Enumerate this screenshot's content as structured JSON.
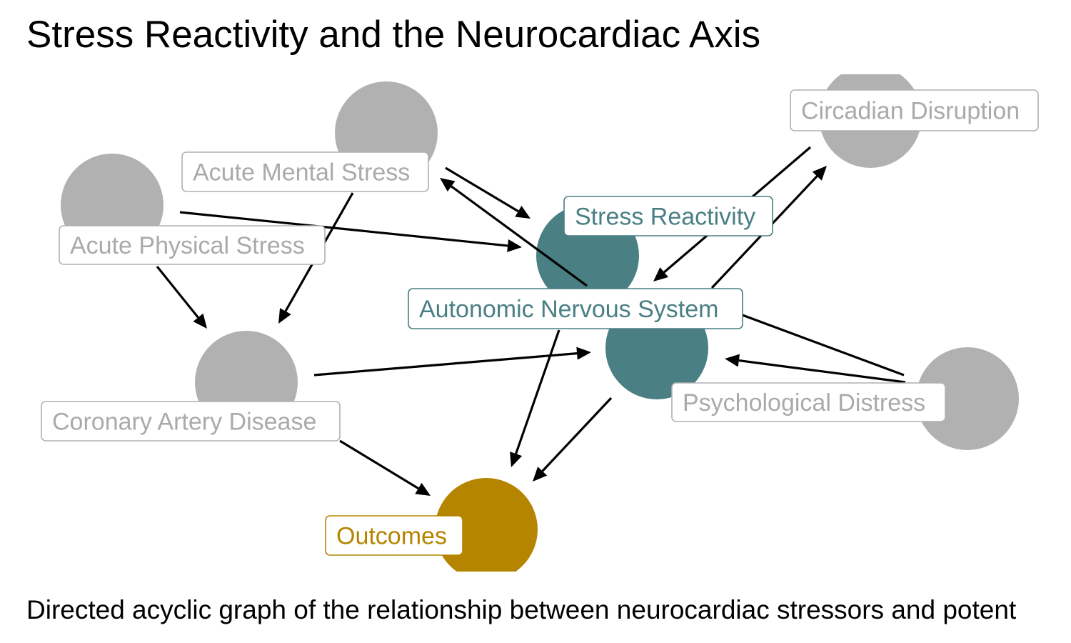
{
  "title": "Stress Reactivity and the Neurocardiac Axis",
  "caption": "Directed acyclic graph of the relationship between neurocardiac stressors and potent",
  "colors": {
    "neutral_fill": "#b0b1b0",
    "neutral_text": "#a9aaa9",
    "neutral_border": "#b0b1b0",
    "focus_fill": "#4a7f84",
    "focus_text": "#4a7f84",
    "outcome_fill": "#b58500",
    "outcome_text": "#b58500",
    "arrow": "#000000"
  },
  "nodes": [
    {
      "id": "ams",
      "label": "Acute Mental Stress",
      "role": "neutral"
    },
    {
      "id": "aps",
      "label": "Acute Physical Stress",
      "role": "neutral"
    },
    {
      "id": "cd",
      "label": "Circadian Disruption",
      "role": "neutral"
    },
    {
      "id": "sr",
      "label": "Stress Reactivity",
      "role": "focus"
    },
    {
      "id": "ans",
      "label": "Autonomic Nervous System",
      "role": "focus"
    },
    {
      "id": "cad",
      "label": "Coronary Artery Disease",
      "role": "neutral"
    },
    {
      "id": "pd",
      "label": "Psychological Distress",
      "role": "neutral"
    },
    {
      "id": "out",
      "label": "Outcomes",
      "role": "outcome"
    }
  ],
  "edges": [
    {
      "from": "ams",
      "to": "sr"
    },
    {
      "from": "ams",
      "to": "cad"
    },
    {
      "from": "aps",
      "to": "sr"
    },
    {
      "from": "aps",
      "to": "cad"
    },
    {
      "from": "ans",
      "to": "ams"
    },
    {
      "from": "ans",
      "to": "cd"
    },
    {
      "from": "cd",
      "to": "sr"
    },
    {
      "from": "pd",
      "to": "sr"
    },
    {
      "from": "pd",
      "to": "ans"
    },
    {
      "from": "cad",
      "to": "ans"
    },
    {
      "from": "cad",
      "to": "out"
    },
    {
      "from": "sr",
      "to": "out"
    },
    {
      "from": "ans",
      "to": "out"
    }
  ]
}
